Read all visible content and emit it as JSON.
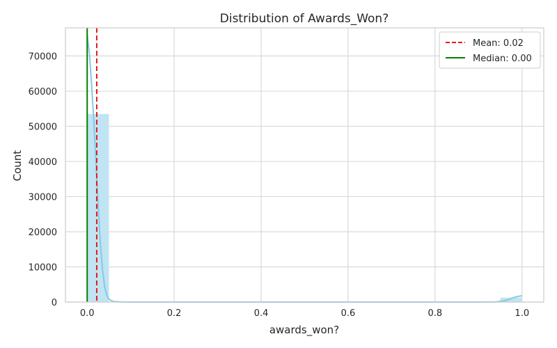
{
  "chart_data": {
    "type": "bar",
    "title": "Distribution of Awards_Won?",
    "xlabel": "awards_won?",
    "ylabel": "Count",
    "xlim": [
      -0.05,
      1.05
    ],
    "ylim": [
      0,
      78000
    ],
    "xticks": [
      0.0,
      0.2,
      0.4,
      0.6,
      0.8,
      1.0
    ],
    "xtick_labels": [
      "0.0",
      "0.2",
      "0.4",
      "0.6",
      "0.8",
      "1.0"
    ],
    "yticks": [
      0,
      10000,
      20000,
      30000,
      40000,
      50000,
      60000,
      70000
    ],
    "ytick_labels": [
      "0",
      "10000",
      "20000",
      "30000",
      "40000",
      "50000",
      "60000",
      "70000"
    ],
    "grid": true,
    "bins": [
      {
        "x0": 0.0,
        "x1": 0.05,
        "count": 53500
      },
      {
        "x0": 0.95,
        "x1": 1.0,
        "count": 1250
      }
    ],
    "kde": [
      [
        0.0,
        76000
      ],
      [
        0.005,
        71000
      ],
      [
        0.01,
        62000
      ],
      [
        0.015,
        52000
      ],
      [
        0.02,
        40000
      ],
      [
        0.025,
        28000
      ],
      [
        0.03,
        17000
      ],
      [
        0.035,
        9500
      ],
      [
        0.04,
        4500
      ],
      [
        0.045,
        2000
      ],
      [
        0.05,
        800
      ],
      [
        0.06,
        150
      ],
      [
        0.08,
        20
      ],
      [
        0.1,
        0
      ],
      [
        0.9,
        0
      ],
      [
        0.94,
        60
      ],
      [
        0.96,
        350
      ],
      [
        0.97,
        750
      ],
      [
        0.98,
        1250
      ],
      [
        0.99,
        1600
      ],
      [
        1.0,
        1800
      ]
    ],
    "mean": {
      "value": 0.022,
      "label": "Mean: 0.02",
      "color": "#e41a1c",
      "style": "dashed"
    },
    "median": {
      "value": 0.0,
      "label": "Median: 0.00",
      "color": "#008000",
      "style": "solid"
    },
    "bar_color": "#c0e4f3",
    "kde_color": "#87c9e0",
    "legend_position": "top-right"
  }
}
